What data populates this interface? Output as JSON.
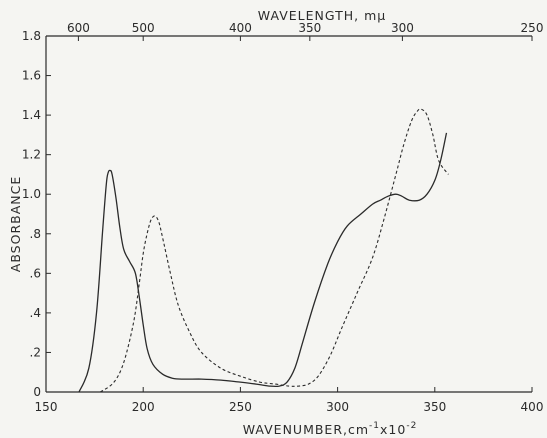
{
  "chart_data": {
    "type": "line",
    "xlabel": "WAVENUMBER,cm",
    "xlabel_sup1": "-1",
    "xlabel_mid": "x10",
    "xlabel_sup2": "-2",
    "top_axis_label": "WAVELENGTH, mμ",
    "ylabel": "ABSORBANCE",
    "xlim": [
      150,
      400
    ],
    "ylim": [
      0,
      1.8
    ],
    "x_ticks": [
      150,
      200,
      250,
      300,
      350,
      400
    ],
    "x_tick_labels": [
      "150",
      "200",
      "250",
      "300",
      "350",
      "400"
    ],
    "y_ticks": [
      0,
      0.2,
      0.4,
      0.6,
      0.8,
      1.0,
      1.2,
      1.4,
      1.6,
      1.8
    ],
    "y_tick_labels": [
      "0",
      ".2",
      ".4",
      ".6",
      ".8",
      "1.0",
      "1.2",
      "1.4",
      "1.6",
      "1.8"
    ],
    "top_ticks_nm": [
      600,
      500,
      400,
      350,
      300,
      250
    ],
    "top_tick_labels": [
      "600",
      "500",
      "400",
      "350",
      "300",
      "250"
    ],
    "grid": false,
    "series": [
      {
        "style": "solid",
        "x": [
          167,
          172,
          176,
          179,
          181,
          182,
          183,
          184,
          186,
          188,
          190,
          193,
          196,
          198,
          200,
          202,
          205,
          210,
          215,
          220,
          230,
          240,
          250,
          258,
          265,
          270,
          274,
          278,
          282,
          288,
          295,
          300,
          305,
          312,
          318,
          322,
          326,
          330,
          333,
          337,
          342,
          346,
          350,
          353,
          356
        ],
        "y": [
          0.0,
          0.12,
          0.4,
          0.8,
          1.05,
          1.11,
          1.12,
          1.1,
          0.98,
          0.83,
          0.72,
          0.66,
          0.6,
          0.48,
          0.34,
          0.22,
          0.14,
          0.09,
          0.07,
          0.065,
          0.065,
          0.06,
          0.05,
          0.04,
          0.03,
          0.03,
          0.05,
          0.12,
          0.25,
          0.45,
          0.65,
          0.76,
          0.84,
          0.9,
          0.95,
          0.97,
          0.99,
          1.0,
          0.99,
          0.97,
          0.97,
          1.0,
          1.07,
          1.17,
          1.31
        ]
      },
      {
        "style": "dashed",
        "x": [
          178,
          185,
          190,
          195,
          198,
          200,
          202,
          204,
          206,
          208,
          210,
          214,
          218,
          224,
          230,
          240,
          250,
          260,
          268,
          275,
          280,
          285,
          290,
          296,
          302,
          310,
          318,
          324,
          330,
          334,
          338,
          341,
          343,
          346,
          349,
          352,
          357
        ],
        "y": [
          0.0,
          0.05,
          0.15,
          0.35,
          0.55,
          0.7,
          0.8,
          0.87,
          0.89,
          0.86,
          0.78,
          0.6,
          0.44,
          0.3,
          0.2,
          0.12,
          0.08,
          0.05,
          0.04,
          0.03,
          0.03,
          0.04,
          0.08,
          0.18,
          0.32,
          0.5,
          0.68,
          0.88,
          1.1,
          1.25,
          1.37,
          1.42,
          1.43,
          1.4,
          1.3,
          1.17,
          1.1
        ]
      }
    ]
  }
}
